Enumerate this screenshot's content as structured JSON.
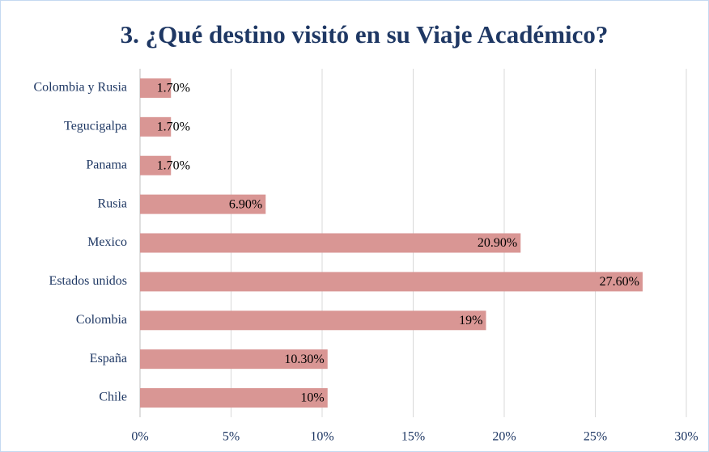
{
  "chart_data": {
    "type": "bar",
    "orientation": "horizontal",
    "title": "3. ¿Qué destino visitó en su Viaje Académico?",
    "categories": [
      "Colombia y Rusia",
      "Tegucigalpa",
      "Panama",
      "Rusia",
      "Mexico",
      "Estados unidos",
      "Colombia",
      "España",
      "Chile"
    ],
    "values": [
      1.7,
      1.7,
      1.7,
      6.9,
      20.9,
      27.6,
      19,
      10.3,
      10.3
    ],
    "value_labels": [
      "1.70%",
      "1.70%",
      "1.70%",
      "6.90%",
      "20.90%",
      "27.60%",
      "19%",
      "10.30%",
      "10%"
    ],
    "color": "#d99694",
    "xlim": [
      0,
      30
    ],
    "xticks": [
      {
        "value": 0,
        "label": "0%"
      },
      {
        "value": 5,
        "label": "5%"
      },
      {
        "value": 10,
        "label": "10%"
      },
      {
        "value": 15,
        "label": "15%"
      },
      {
        "value": 20,
        "label": "20%"
      },
      {
        "value": 25,
        "label": "25%"
      },
      {
        "value": 30,
        "label": "30%"
      }
    ],
    "grid": true
  }
}
